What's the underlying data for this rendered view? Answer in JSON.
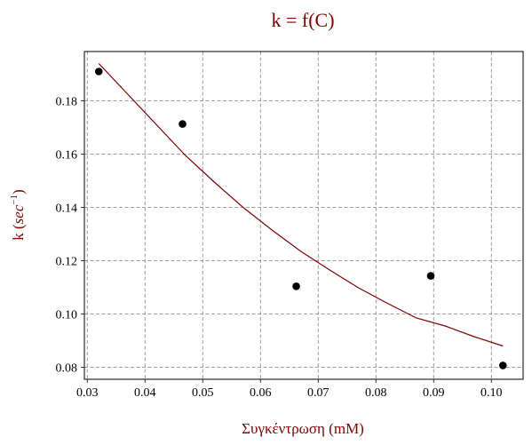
{
  "chart_data": {
    "type": "scatter",
    "title": "k = f(C)",
    "xlabel": "Συγκέντρωση (mM)",
    "ylabel": {
      "prefix": "k (",
      "unit_base": "sec",
      "unit_exp": "−1",
      "suffix": ")"
    },
    "xlim": [
      0.0295,
      0.1055
    ],
    "ylim": [
      0.0755,
      0.1985
    ],
    "xticks": [
      0.03,
      0.04,
      0.05,
      0.06,
      0.07,
      0.08,
      0.09,
      0.1
    ],
    "xtick_labels": [
      "0.03",
      "0.04",
      "0.05",
      "0.06",
      "0.07",
      "0.08",
      "0.09",
      "0.10"
    ],
    "yticks": [
      0.08,
      0.1,
      0.12,
      0.14,
      0.16,
      0.18
    ],
    "ytick_labels": [
      "0.08",
      "0.10",
      "0.12",
      "0.14",
      "0.16",
      "0.18"
    ],
    "grid": true,
    "series": [
      {
        "kind": "points",
        "x": [
          0.032,
          0.0465,
          0.0662,
          0.0895,
          0.102
        ],
        "y": [
          0.191,
          0.1713,
          0.1104,
          0.1143,
          0.0807
        ]
      },
      {
        "kind": "fit-curve",
        "x": [
          0.032,
          0.037,
          0.042,
          0.047,
          0.052,
          0.057,
          0.062,
          0.067,
          0.072,
          0.077,
          0.082,
          0.087,
          0.092,
          0.097,
          0.102
        ],
        "y": [
          0.194,
          0.1825,
          0.171,
          0.1595,
          0.1495,
          0.14,
          0.1315,
          0.1235,
          0.1165,
          0.1098,
          0.104,
          0.0985,
          0.0955,
          0.0915,
          0.088
        ]
      }
    ],
    "colors": {
      "title": "#800000",
      "axis_label": "#800000",
      "points": "#000000",
      "curve": "#800000",
      "grid": "#808080"
    }
  }
}
